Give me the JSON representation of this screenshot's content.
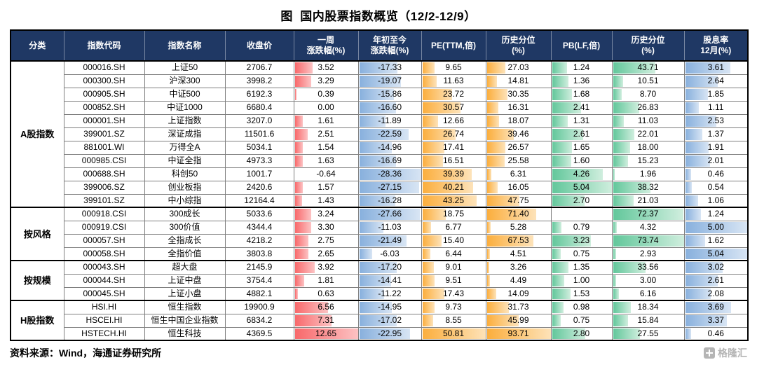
{
  "title": "图  国内股票指数概览（12/2-12/9）",
  "source": "资料来源：Wind，海通证券研究所",
  "watermark": "格隆汇",
  "colors": {
    "header_bg": "#1f3864",
    "header_text": "#ffffff",
    "grid_line": "#7f7f7f",
    "group_border": "#000000"
  },
  "chart_data": {
    "type": "table",
    "title": "图  国内股票指数概览（12/2-12/9）",
    "columns": [
      "分类",
      "指数代码",
      "指数名称",
      "收盘价",
      "一周\n涨跌幅(%)",
      "年初至今\n涨跌幅(%)",
      "PE(TTM,倍)",
      "历史分位\n(%)",
      "PB(LF,倍)",
      "历史分位\n(%)",
      "股息率\n12月(%)"
    ],
    "bar_colors": {
      "week": {
        "from": "#f8696b",
        "to": "#fcc3c4"
      },
      "ytd": {
        "from": "#88b0dd",
        "to": "#d8e5f4"
      },
      "pe": {
        "from": "#fbae3d",
        "to": "#fde3ba"
      },
      "pe_pct": {
        "from": "#fbae3d",
        "to": "#fde3ba"
      },
      "pb": {
        "from": "#62c79b",
        "to": "#d0eede"
      },
      "pb_pct": {
        "from": "#62c79b",
        "to": "#d0eede"
      },
      "div": {
        "from": "#88b0dd",
        "to": "#d8e5f4"
      }
    },
    "groups": [
      {
        "name": "A股指数",
        "rows": [
          [
            "000016.SH",
            "上证50",
            "2706.7",
            "3.52",
            "-17.33",
            "9.65",
            "27.03",
            "1.24",
            "43.71",
            "3.61"
          ],
          [
            "000300.SH",
            "沪深300",
            "3998.2",
            "3.29",
            "-19.07",
            "11.63",
            "14.81",
            "1.36",
            "10.51",
            "2.64"
          ],
          [
            "000905.SH",
            "中证500",
            "6192.3",
            "0.39",
            "-15.86",
            "23.72",
            "30.35",
            "1.68",
            "8.70",
            "1.85"
          ],
          [
            "000852.SH",
            "中证1000",
            "6680.4",
            "0.00",
            "-16.60",
            "30.57",
            "16.31",
            "2.41",
            "26.83",
            "1.11"
          ],
          [
            "000001.SH",
            "上证指数",
            "3207.0",
            "1.61",
            "-11.89",
            "12.66",
            "18.07",
            "1.31",
            "11.03",
            "2.53"
          ],
          [
            "399001.SZ",
            "深证成指",
            "11501.6",
            "2.51",
            "-22.59",
            "26.74",
            "39.46",
            "2.61",
            "22.01",
            "1.37"
          ],
          [
            "881001.WI",
            "万得全A",
            "5034.1",
            "1.54",
            "-14.96",
            "17.41",
            "26.57",
            "1.65",
            "18.00",
            "1.91"
          ],
          [
            "000985.CSI",
            "中证全指",
            "4973.3",
            "1.63",
            "-16.69",
            "16.51",
            "25.58",
            "1.60",
            "15.23",
            "2.01"
          ],
          [
            "000688.SH",
            "科创50",
            "1001.7",
            "-0.64",
            "-28.36",
            "39.39",
            "6.31",
            "4.26",
            "1.96",
            "0.46"
          ],
          [
            "399006.SZ",
            "创业板指",
            "2420.6",
            "1.57",
            "-27.15",
            "40.21",
            "16.05",
            "5.04",
            "38.32",
            "0.54"
          ],
          [
            "399101.SZ",
            "中小综指",
            "12164.4",
            "1.43",
            "-16.28",
            "43.25",
            "47.75",
            "2.70",
            "21.03",
            "1.06"
          ]
        ]
      },
      {
        "name": "按风格",
        "rows": [
          [
            "000918.CSI",
            "300成长",
            "5033.6",
            "3.24",
            "-27.66",
            "18.75",
            "71.40",
            "",
            "72.37",
            "1.24"
          ],
          [
            "000919.CSI",
            "300价值",
            "4344.4",
            "3.30",
            "-11.03",
            "6.77",
            "5.28",
            "0.79",
            "4.32",
            "5.00"
          ],
          [
            "000057.SH",
            "全指成长",
            "4218.2",
            "2.75",
            "-21.49",
            "15.40",
            "67.53",
            "3.23",
            "73.74",
            "1.62"
          ],
          [
            "000058.SH",
            "全指价值",
            "3803.8",
            "2.65",
            "-6.03",
            "6.44",
            "4.51",
            "0.75",
            "2.93",
            "5.04"
          ]
        ]
      },
      {
        "name": "按规模",
        "rows": [
          [
            "000043.SH",
            "超大盘",
            "2145.9",
            "3.92",
            "-17.20",
            "9.01",
            "3.26",
            "1.35",
            "33.56",
            "3.02"
          ],
          [
            "000044.SH",
            "上证中盘",
            "3754.4",
            "1.81",
            "-14.41",
            "9.51",
            "4.49",
            "1.00",
            "3.00",
            "2.61"
          ],
          [
            "000045.SH",
            "上证小盘",
            "4882.1",
            "0.63",
            "-11.22",
            "17.43",
            "14.09",
            "1.53",
            "6.16",
            "2.08"
          ]
        ]
      },
      {
        "name": "H股指数",
        "rows": [
          [
            "HSI.HI",
            "恒生指数",
            "19900.9",
            "6.56",
            "-14.95",
            "9.73",
            "31.73",
            "0.98",
            "18.34",
            "3.69"
          ],
          [
            "HSCEI.HI",
            "恒生中国企业指数",
            "6834.2",
            "7.31",
            "-17.02",
            "8.55",
            "45.99",
            "0.75",
            "15.84",
            "3.37"
          ],
          [
            "HSTECH.HI",
            "恒生科技",
            "4369.5",
            "12.65",
            "-22.95",
            "50.81",
            "93.71",
            "2.80",
            "27.55",
            "0.46"
          ]
        ]
      }
    ]
  }
}
